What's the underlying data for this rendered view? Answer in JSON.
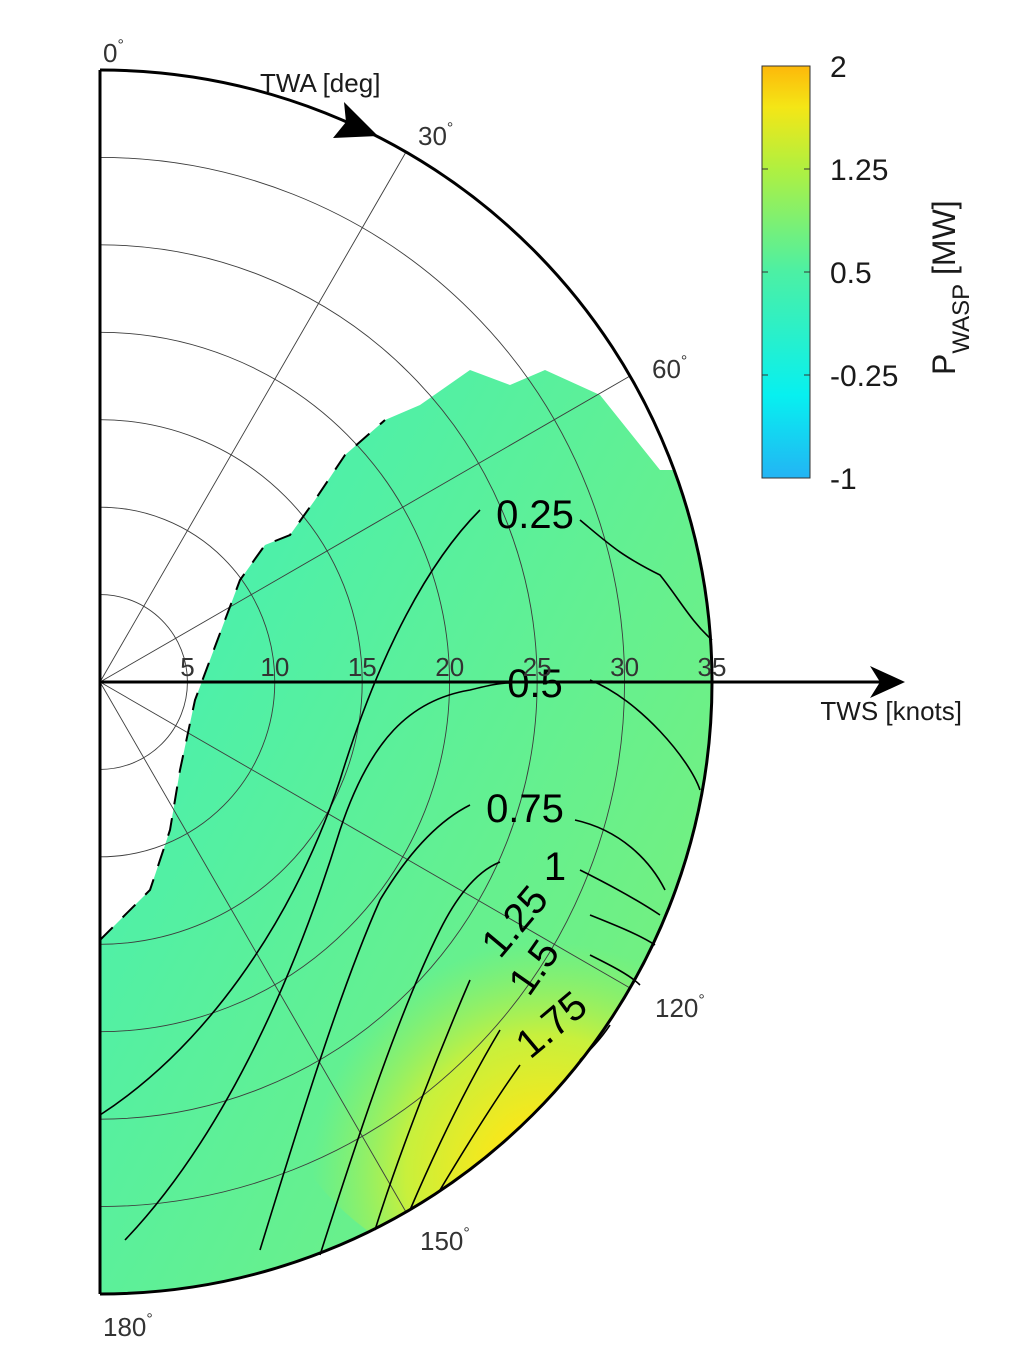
{
  "chart_data": {
    "type": "heatmap",
    "projection": "polar-half",
    "colormap": "parula-like",
    "x_axis": {
      "label": "TWS [knots]",
      "min": 0,
      "max": 35,
      "ticks": [
        5,
        10,
        15,
        20,
        25,
        30,
        35
      ]
    },
    "angular_axis": {
      "label": "TWA [deg]",
      "min": 0,
      "max": 180,
      "ticks": [
        0,
        30,
        60,
        120,
        150,
        180
      ],
      "tick_labels": [
        "0",
        "30",
        "60",
        "120",
        "150",
        "180"
      ],
      "degree_symbol": "°"
    },
    "colorbar": {
      "min": -1,
      "max": 2,
      "ticks": [
        -1,
        -0.25,
        0.5,
        1.25,
        2
      ],
      "tick_labels": [
        "-1",
        "-0.25",
        "0.5",
        "1.25",
        "2"
      ],
      "title_main": "P",
      "title_sub": "WASP",
      "title_unit": "[MW]"
    },
    "contours": [
      {
        "level": 0.25,
        "label": "0.25"
      },
      {
        "level": 0.5,
        "label": "0.5"
      },
      {
        "level": 0.75,
        "label": "0.75"
      },
      {
        "level": 1,
        "label": "1"
      },
      {
        "level": 1.25,
        "label": "1.25"
      },
      {
        "level": 1.5,
        "label": "1.5"
      },
      {
        "level": 1.75,
        "label": "1.75"
      }
    ],
    "grid": true
  }
}
